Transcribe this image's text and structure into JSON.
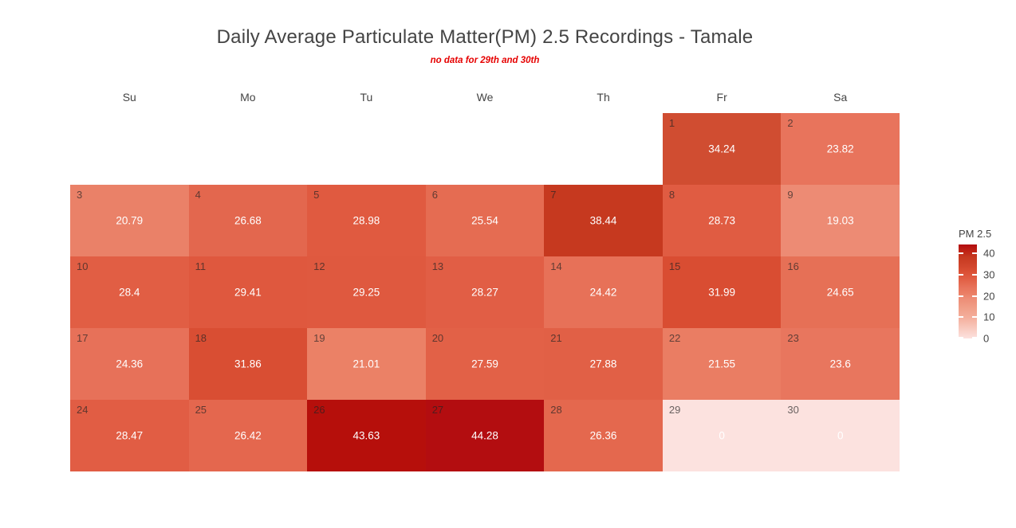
{
  "title": "Daily Average Particulate Matter(PM) 2.5 Recordings - Tamale",
  "subtitle": "no data for 29th and 30th",
  "weekdays": [
    "Su",
    "Mo",
    "Tu",
    "We",
    "Th",
    "Fr",
    "Sa"
  ],
  "colors": {
    "background": "#ffffff",
    "title_text": "#444444",
    "subtitle_text": "#e60000",
    "axis_text": "#444444",
    "day_number_text": "rgba(35,35,35,0.68)",
    "cell_value_text": "#ffffff"
  },
  "chart_data": {
    "type": "heatmap",
    "subtype": "calendar-heatmap",
    "title": "Daily Average Particulate Matter(PM) 2.5 Recordings - Tamale",
    "annotation": "no data for 29th and 30th",
    "columns": [
      "Su",
      "Mo",
      "Tu",
      "We",
      "Th",
      "Fr",
      "Sa"
    ],
    "week_rows": 5,
    "value_label": "PM 2.5",
    "cells": [
      {
        "day": 1,
        "weekday": "Fr",
        "row": 0,
        "col": 5,
        "value": 34.24,
        "color": "#d04d31"
      },
      {
        "day": 2,
        "weekday": "Sa",
        "row": 0,
        "col": 6,
        "value": 23.82,
        "color": "#e8745c"
      },
      {
        "day": 3,
        "weekday": "Su",
        "row": 1,
        "col": 0,
        "value": 20.79,
        "color": "#ea8168"
      },
      {
        "day": 4,
        "weekday": "Mo",
        "row": 1,
        "col": 1,
        "value": 26.68,
        "color": "#e3674e"
      },
      {
        "day": 5,
        "weekday": "Tu",
        "row": 1,
        "col": 2,
        "value": 28.98,
        "color": "#e05a40"
      },
      {
        "day": 6,
        "weekday": "We",
        "row": 1,
        "col": 3,
        "value": 25.54,
        "color": "#e56c52"
      },
      {
        "day": 7,
        "weekday": "Th",
        "row": 1,
        "col": 4,
        "value": 38.44,
        "color": "#c6391f"
      },
      {
        "day": 8,
        "weekday": "Fr",
        "row": 1,
        "col": 5,
        "value": 28.73,
        "color": "#e05c42"
      },
      {
        "day": 9,
        "weekday": "Sa",
        "row": 1,
        "col": 6,
        "value": 19.03,
        "color": "#ed8b74"
      },
      {
        "day": 10,
        "weekday": "Su",
        "row": 2,
        "col": 0,
        "value": 28.4,
        "color": "#e15e44"
      },
      {
        "day": 11,
        "weekday": "Mo",
        "row": 2,
        "col": 1,
        "value": 29.41,
        "color": "#df583e"
      },
      {
        "day": 12,
        "weekday": "Tu",
        "row": 2,
        "col": 2,
        "value": 29.25,
        "color": "#df593f"
      },
      {
        "day": 13,
        "weekday": "We",
        "row": 2,
        "col": 3,
        "value": 28.27,
        "color": "#e15e45"
      },
      {
        "day": 14,
        "weekday": "Th",
        "row": 2,
        "col": 4,
        "value": 24.42,
        "color": "#e77158"
      },
      {
        "day": 15,
        "weekday": "Fr",
        "row": 2,
        "col": 5,
        "value": 31.99,
        "color": "#d94d32"
      },
      {
        "day": 16,
        "weekday": "Sa",
        "row": 2,
        "col": 6,
        "value": 24.65,
        "color": "#e67056"
      },
      {
        "day": 17,
        "weekday": "Su",
        "row": 3,
        "col": 0,
        "value": 24.36,
        "color": "#e77159"
      },
      {
        "day": 18,
        "weekday": "Mo",
        "row": 3,
        "col": 1,
        "value": 31.86,
        "color": "#d94e33"
      },
      {
        "day": 19,
        "weekday": "Tu",
        "row": 3,
        "col": 2,
        "value": 21.01,
        "color": "#eb8166"
      },
      {
        "day": 20,
        "weekday": "We",
        "row": 3,
        "col": 3,
        "value": 27.59,
        "color": "#e26147"
      },
      {
        "day": 21,
        "weekday": "Th",
        "row": 3,
        "col": 4,
        "value": 27.88,
        "color": "#e16046"
      },
      {
        "day": 22,
        "weekday": "Fr",
        "row": 3,
        "col": 5,
        "value": 21.55,
        "color": "#ea7d63"
      },
      {
        "day": 23,
        "weekday": "Sa",
        "row": 3,
        "col": 6,
        "value": 23.6,
        "color": "#e8765e"
      },
      {
        "day": 24,
        "weekday": "Su",
        "row": 4,
        "col": 0,
        "value": 28.47,
        "color": "#e15d44"
      },
      {
        "day": 25,
        "weekday": "Mo",
        "row": 4,
        "col": 1,
        "value": 26.42,
        "color": "#e4674e"
      },
      {
        "day": 26,
        "weekday": "Tu",
        "row": 4,
        "col": 2,
        "value": 43.63,
        "color": "#b60f0b"
      },
      {
        "day": 27,
        "weekday": "We",
        "row": 4,
        "col": 3,
        "value": 44.28,
        "color": "#b30d10"
      },
      {
        "day": 28,
        "weekday": "Th",
        "row": 4,
        "col": 4,
        "value": 26.36,
        "color": "#e4684e"
      },
      {
        "day": 29,
        "weekday": "Fr",
        "row": 4,
        "col": 5,
        "value": 0,
        "color": "#fce2df"
      },
      {
        "day": 30,
        "weekday": "Sa",
        "row": 4,
        "col": 6,
        "value": 0,
        "color": "#fce2df"
      }
    ],
    "colorbar": {
      "title": "PM 2.5",
      "min": 0,
      "max": 44.28,
      "ticks": [
        40,
        30,
        20,
        10,
        0
      ],
      "gradient": [
        {
          "value": 0,
          "color": "#fce2df"
        },
        {
          "value": 10,
          "color": "#f4ae9b"
        },
        {
          "value": 15,
          "color": "#f09c85"
        },
        {
          "value": 19.03,
          "color": "#ed8c75"
        },
        {
          "value": 21.55,
          "color": "#ea7d63"
        },
        {
          "value": 23.82,
          "color": "#e8745c"
        },
        {
          "value": 25.54,
          "color": "#e56c52"
        },
        {
          "value": 27.59,
          "color": "#e26147"
        },
        {
          "value": 28.98,
          "color": "#e05a40"
        },
        {
          "value": 31.99,
          "color": "#d94d32"
        },
        {
          "value": 34.24,
          "color": "#d1452c"
        },
        {
          "value": 38.44,
          "color": "#c6391f"
        },
        {
          "value": 41,
          "color": "#bf2415"
        },
        {
          "value": 44.28,
          "color": "#b30d10"
        }
      ]
    }
  }
}
